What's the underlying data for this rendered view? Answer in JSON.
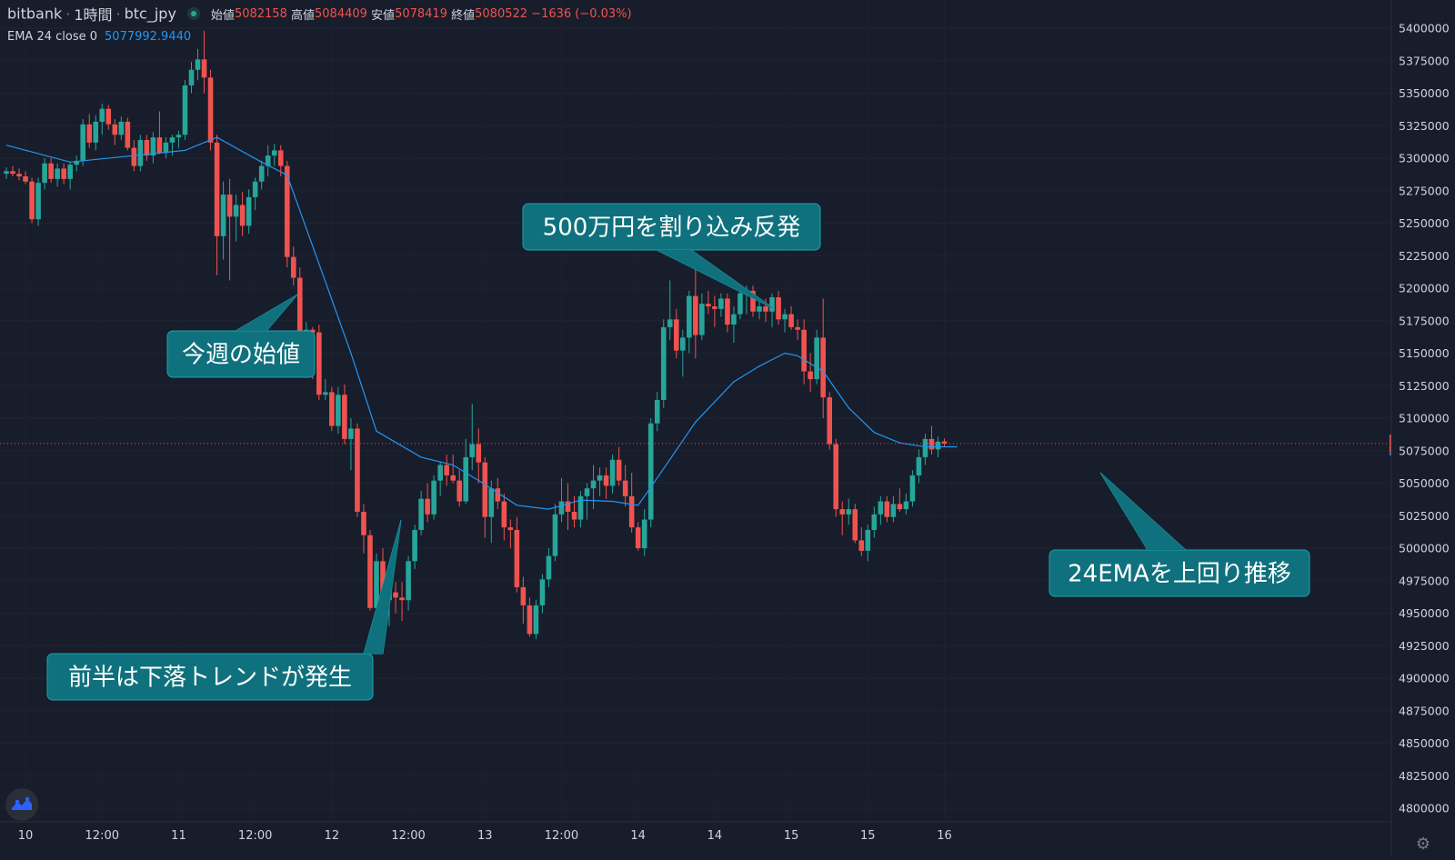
{
  "legend": {
    "exchange": "bitbank",
    "interval": "1時間",
    "symbol": "btc_jpy",
    "open_label": "始値",
    "open_value": "5082158",
    "high_label": "高値",
    "high_value": "5084409",
    "low_label": "安値",
    "low_value": "5078419",
    "close_label": "終値",
    "close_value": "5080522",
    "change": "−1636 (−0.03%)",
    "ema_label": "EMA 24 close 0",
    "ema_value": "5077992.9440"
  },
  "annotations": [
    "今週の始値",
    "500万円を割り込み反発",
    "前半は下落トレンドが発生",
    "24EMAを上回り推移"
  ],
  "colors": {
    "background": "#181d2b",
    "up": "#26a69a",
    "down": "#ef5350",
    "ema": "#2196f3",
    "callout": "#0f717d",
    "price_line": "#ef5350"
  },
  "icons": [
    "tradingview-logo-icon",
    "gear-icon"
  ],
  "chart_data": {
    "type": "candlestick",
    "interval": "1時間",
    "symbol": "btc_jpy",
    "ylim": [
      4788000,
      5408000
    ],
    "y_ticks": [
      4800000,
      4825000,
      4850000,
      4875000,
      4900000,
      4925000,
      4950000,
      4975000,
      5000000,
      5025000,
      5050000,
      5075000,
      5100000,
      5125000,
      5150000,
      5175000,
      5200000,
      5225000,
      5250000,
      5275000,
      5300000,
      5325000,
      5350000,
      5375000,
      5400000
    ],
    "x_ticks": [
      {
        "label": "10",
        "bar": 3
      },
      {
        "label": "12:00",
        "bar": 15
      },
      {
        "label": "11",
        "bar": 27
      },
      {
        "label": "12:00",
        "bar": 39
      },
      {
        "label": "12",
        "bar": 51
      },
      {
        "label": "12:00",
        "bar": 63
      },
      {
        "label": "13",
        "bar": 75
      },
      {
        "label": "12:00",
        "bar": 87
      },
      {
        "label": "14",
        "bar": 99
      },
      {
        "label": "14",
        "bar": 111
      },
      {
        "label": "15",
        "bar": 123
      },
      {
        "label": "15",
        "bar": 135
      },
      {
        "label": "16",
        "bar": 147
      }
    ],
    "last_price": 5080522,
    "last_price_label": "5080522",
    "ohlc": [
      [
        5288000,
        5293000,
        5284000,
        5290000
      ],
      [
        5290000,
        5294000,
        5286000,
        5288000
      ],
      [
        5288000,
        5292000,
        5283000,
        5286000
      ],
      [
        5286000,
        5290000,
        5280000,
        5282000
      ],
      [
        5282000,
        5285000,
        5250000,
        5253000
      ],
      [
        5253000,
        5285000,
        5248000,
        5281000
      ],
      [
        5281000,
        5300000,
        5276000,
        5296000
      ],
      [
        5296000,
        5300000,
        5281000,
        5284000
      ],
      [
        5284000,
        5296000,
        5278000,
        5292000
      ],
      [
        5292000,
        5296000,
        5280000,
        5284000
      ],
      [
        5284000,
        5297000,
        5276000,
        5295000
      ],
      [
        5295000,
        5302000,
        5290000,
        5298000
      ],
      [
        5298000,
        5330000,
        5294000,
        5326000
      ],
      [
        5326000,
        5334000,
        5308000,
        5312000
      ],
      [
        5312000,
        5333000,
        5306000,
        5328000
      ],
      [
        5328000,
        5342000,
        5318000,
        5338000
      ],
      [
        5338000,
        5341000,
        5322000,
        5326000
      ],
      [
        5326000,
        5330000,
        5310000,
        5318000
      ],
      [
        5318000,
        5332000,
        5314000,
        5328000
      ],
      [
        5328000,
        5331000,
        5306000,
        5308000
      ],
      [
        5308000,
        5314000,
        5290000,
        5294000
      ],
      [
        5294000,
        5318000,
        5290000,
        5314000
      ],
      [
        5314000,
        5318000,
        5298000,
        5302000
      ],
      [
        5302000,
        5320000,
        5296000,
        5316000
      ],
      [
        5316000,
        5336000,
        5303000,
        5304000
      ],
      [
        5304000,
        5316000,
        5300000,
        5312000
      ],
      [
        5312000,
        5318000,
        5302000,
        5316000
      ],
      [
        5316000,
        5321000,
        5308000,
        5318000
      ],
      [
        5318000,
        5360000,
        5314000,
        5356000
      ],
      [
        5356000,
        5374000,
        5350000,
        5368000
      ],
      [
        5368000,
        5384000,
        5360000,
        5376000
      ],
      [
        5376000,
        5398000,
        5350000,
        5362000
      ],
      [
        5362000,
        5368000,
        5306000,
        5312000
      ],
      [
        5312000,
        5318000,
        5210000,
        5240000
      ],
      [
        5240000,
        5282000,
        5222000,
        5272000
      ],
      [
        5272000,
        5284000,
        5206000,
        5255000
      ],
      [
        5255000,
        5272000,
        5236000,
        5264000
      ],
      [
        5264000,
        5274000,
        5240000,
        5248000
      ],
      [
        5248000,
        5276000,
        5242000,
        5270000
      ],
      [
        5270000,
        5285000,
        5260000,
        5282000
      ],
      [
        5282000,
        5298000,
        5276000,
        5294000
      ],
      [
        5294000,
        5310000,
        5286000,
        5302000
      ],
      [
        5302000,
        5311000,
        5294000,
        5306000
      ],
      [
        5306000,
        5310000,
        5286000,
        5294000
      ],
      [
        5294000,
        5298000,
        5216000,
        5224000
      ],
      [
        5224000,
        5232000,
        5202000,
        5208000
      ],
      [
        5208000,
        5216000,
        5156000,
        5162000
      ],
      [
        5162000,
        5174000,
        5150000,
        5168000
      ],
      [
        5168000,
        5170000,
        5130000,
        5166000
      ],
      [
        5166000,
        5172000,
        5114000,
        5118000
      ],
      [
        5118000,
        5130000,
        5114000,
        5120000
      ],
      [
        5120000,
        5124000,
        5090000,
        5094000
      ],
      [
        5094000,
        5124000,
        5088000,
        5118000
      ],
      [
        5118000,
        5126000,
        5080000,
        5084000
      ],
      [
        5084000,
        5100000,
        5060000,
        5092000
      ],
      [
        5092000,
        5096000,
        5024000,
        5028000
      ],
      [
        5028000,
        5034000,
        4996000,
        5010000
      ],
      [
        5010000,
        5014000,
        4952000,
        4954000
      ],
      [
        4954000,
        4996000,
        4928000,
        4990000
      ],
      [
        4990000,
        5000000,
        4952000,
        4960000
      ],
      [
        4960000,
        4970000,
        4940000,
        4966000
      ],
      [
        4966000,
        4974000,
        4950000,
        4962000
      ],
      [
        4962000,
        4974000,
        4944000,
        4960000
      ],
      [
        4960000,
        4994000,
        4952000,
        4990000
      ],
      [
        4990000,
        5018000,
        4984000,
        5014000
      ],
      [
        5014000,
        5044000,
        5010000,
        5038000
      ],
      [
        5038000,
        5050000,
        5020000,
        5026000
      ],
      [
        5026000,
        5056000,
        5022000,
        5052000
      ],
      [
        5052000,
        5066000,
        5040000,
        5064000
      ],
      [
        5064000,
        5072000,
        5048000,
        5056000
      ],
      [
        5056000,
        5072000,
        5050000,
        5052000
      ],
      [
        5052000,
        5060000,
        5032000,
        5036000
      ],
      [
        5036000,
        5084000,
        5034000,
        5070000
      ],
      [
        5070000,
        5111000,
        5060000,
        5080000
      ],
      [
        5080000,
        5092000,
        5050000,
        5066000
      ],
      [
        5066000,
        5070000,
        5008000,
        5024000
      ],
      [
        5024000,
        5052000,
        5004000,
        5046000
      ],
      [
        5046000,
        5054000,
        5030000,
        5036000
      ],
      [
        5036000,
        5042000,
        5006000,
        5016000
      ],
      [
        5016000,
        5022000,
        5000000,
        5014000
      ],
      [
        5014000,
        5024000,
        4966000,
        4970000
      ],
      [
        4970000,
        4978000,
        4942000,
        4956000
      ],
      [
        4956000,
        4962000,
        4932000,
        4934000
      ],
      [
        4934000,
        4960000,
        4930000,
        4956000
      ],
      [
        4956000,
        4980000,
        4950000,
        4976000
      ],
      [
        4976000,
        5000000,
        4970000,
        4994000
      ],
      [
        4994000,
        5034000,
        4990000,
        5026000
      ],
      [
        5026000,
        5054000,
        5020000,
        5036000
      ],
      [
        5036000,
        5050000,
        5014000,
        5028000
      ],
      [
        5028000,
        5040000,
        5016000,
        5022000
      ],
      [
        5022000,
        5044000,
        5016000,
        5040000
      ],
      [
        5040000,
        5050000,
        5022000,
        5046000
      ],
      [
        5046000,
        5064000,
        5030000,
        5052000
      ],
      [
        5052000,
        5062000,
        5040000,
        5056000
      ],
      [
        5056000,
        5062000,
        5038000,
        5048000
      ],
      [
        5048000,
        5072000,
        5042000,
        5068000
      ],
      [
        5068000,
        5078000,
        5048000,
        5052000
      ],
      [
        5052000,
        5064000,
        5032000,
        5040000
      ],
      [
        5040000,
        5058000,
        5012000,
        5016000
      ],
      [
        5016000,
        5020000,
        4998000,
        5000000
      ],
      [
        5000000,
        5030000,
        4994000,
        5022000
      ],
      [
        5022000,
        5100000,
        5016000,
        5096000
      ],
      [
        5096000,
        5120000,
        5090000,
        5114000
      ],
      [
        5114000,
        5176000,
        5108000,
        5170000
      ],
      [
        5170000,
        5206000,
        5160000,
        5176000
      ],
      [
        5176000,
        5184000,
        5146000,
        5152000
      ],
      [
        5152000,
        5168000,
        5132000,
        5162000
      ],
      [
        5162000,
        5198000,
        5150000,
        5194000
      ],
      [
        5194000,
        5218000,
        5146000,
        5164000
      ],
      [
        5164000,
        5196000,
        5160000,
        5188000
      ],
      [
        5188000,
        5198000,
        5180000,
        5186000
      ],
      [
        5186000,
        5194000,
        5170000,
        5184000
      ],
      [
        5184000,
        5196000,
        5178000,
        5192000
      ],
      [
        5192000,
        5196000,
        5166000,
        5172000
      ],
      [
        5172000,
        5186000,
        5158000,
        5180000
      ],
      [
        5180000,
        5200000,
        5176000,
        5196000
      ],
      [
        5196000,
        5202000,
        5180000,
        5198000
      ],
      [
        5198000,
        5202000,
        5178000,
        5182000
      ],
      [
        5182000,
        5190000,
        5176000,
        5186000
      ],
      [
        5186000,
        5192000,
        5174000,
        5182000
      ],
      [
        5182000,
        5196000,
        5170000,
        5193000
      ],
      [
        5193000,
        5198000,
        5172000,
        5176000
      ],
      [
        5176000,
        5184000,
        5166000,
        5180000
      ],
      [
        5180000,
        5186000,
        5168000,
        5170000
      ],
      [
        5170000,
        5176000,
        5160000,
        5168000
      ],
      [
        5168000,
        5176000,
        5126000,
        5136000
      ],
      [
        5136000,
        5150000,
        5120000,
        5130000
      ],
      [
        5130000,
        5168000,
        5126000,
        5162000
      ],
      [
        5162000,
        5192000,
        5100000,
        5116000
      ],
      [
        5116000,
        5120000,
        5076000,
        5080000
      ],
      [
        5080000,
        5084000,
        5024000,
        5030000
      ],
      [
        5030000,
        5036000,
        5010000,
        5026000
      ],
      [
        5026000,
        5038000,
        5018000,
        5030000
      ],
      [
        5030000,
        5034000,
        5004000,
        5006000
      ],
      [
        5006000,
        5016000,
        4994000,
        4998000
      ],
      [
        4998000,
        5018000,
        4990000,
        5014000
      ],
      [
        5014000,
        5032000,
        5008000,
        5026000
      ],
      [
        5026000,
        5040000,
        5018000,
        5036000
      ],
      [
        5036000,
        5040000,
        5020000,
        5024000
      ],
      [
        5024000,
        5040000,
        5020000,
        5034000
      ],
      [
        5034000,
        5046000,
        5028000,
        5030000
      ],
      [
        5030000,
        5042000,
        5026000,
        5036000
      ],
      [
        5036000,
        5060000,
        5032000,
        5056000
      ],
      [
        5056000,
        5076000,
        5050000,
        5070000
      ],
      [
        5070000,
        5088000,
        5064000,
        5084000
      ],
      [
        5084000,
        5094000,
        5072000,
        5076000
      ],
      [
        5076000,
        5086000,
        5070000,
        5082000
      ],
      [
        5082158,
        5084409,
        5078419,
        5080522
      ]
    ],
    "ema": {
      "name": "EMA 24 close 0",
      "values": [
        [
          0,
          5310000
        ],
        [
          10,
          5297000
        ],
        [
          20,
          5302000
        ],
        [
          28,
          5306000
        ],
        [
          33,
          5316000
        ],
        [
          40,
          5297000
        ],
        [
          44,
          5287000
        ],
        [
          50,
          5205000
        ],
        [
          54,
          5150000
        ],
        [
          58,
          5090000
        ],
        [
          65,
          5070000
        ],
        [
          70,
          5064000
        ],
        [
          75,
          5049000
        ],
        [
          80,
          5033000
        ],
        [
          85,
          5030000
        ],
        [
          90,
          5037000
        ],
        [
          95,
          5036000
        ],
        [
          99,
          5033000
        ],
        [
          102,
          5054000
        ],
        [
          108,
          5097000
        ],
        [
          114,
          5128000
        ],
        [
          118,
          5140000
        ],
        [
          120,
          5145000
        ],
        [
          122,
          5150000
        ],
        [
          124,
          5148000
        ],
        [
          128,
          5136000
        ],
        [
          132,
          5108000
        ],
        [
          136,
          5089000
        ],
        [
          140,
          5081000
        ],
        [
          144,
          5078000
        ],
        [
          148,
          5078000
        ],
        [
          149,
          5077993
        ]
      ]
    },
    "annotations": [
      {
        "text": "今週の始値",
        "bar": 32,
        "price": 5204000
      },
      {
        "text": "500万円を割り込み反発",
        "bar": 100,
        "price": 5174000
      },
      {
        "text": "前半は下落トレンドが発生",
        "bar": 52,
        "price": 5026000
      },
      {
        "text": "24EMAを上回り推移",
        "bar": 145,
        "price": 5058000
      }
    ]
  }
}
